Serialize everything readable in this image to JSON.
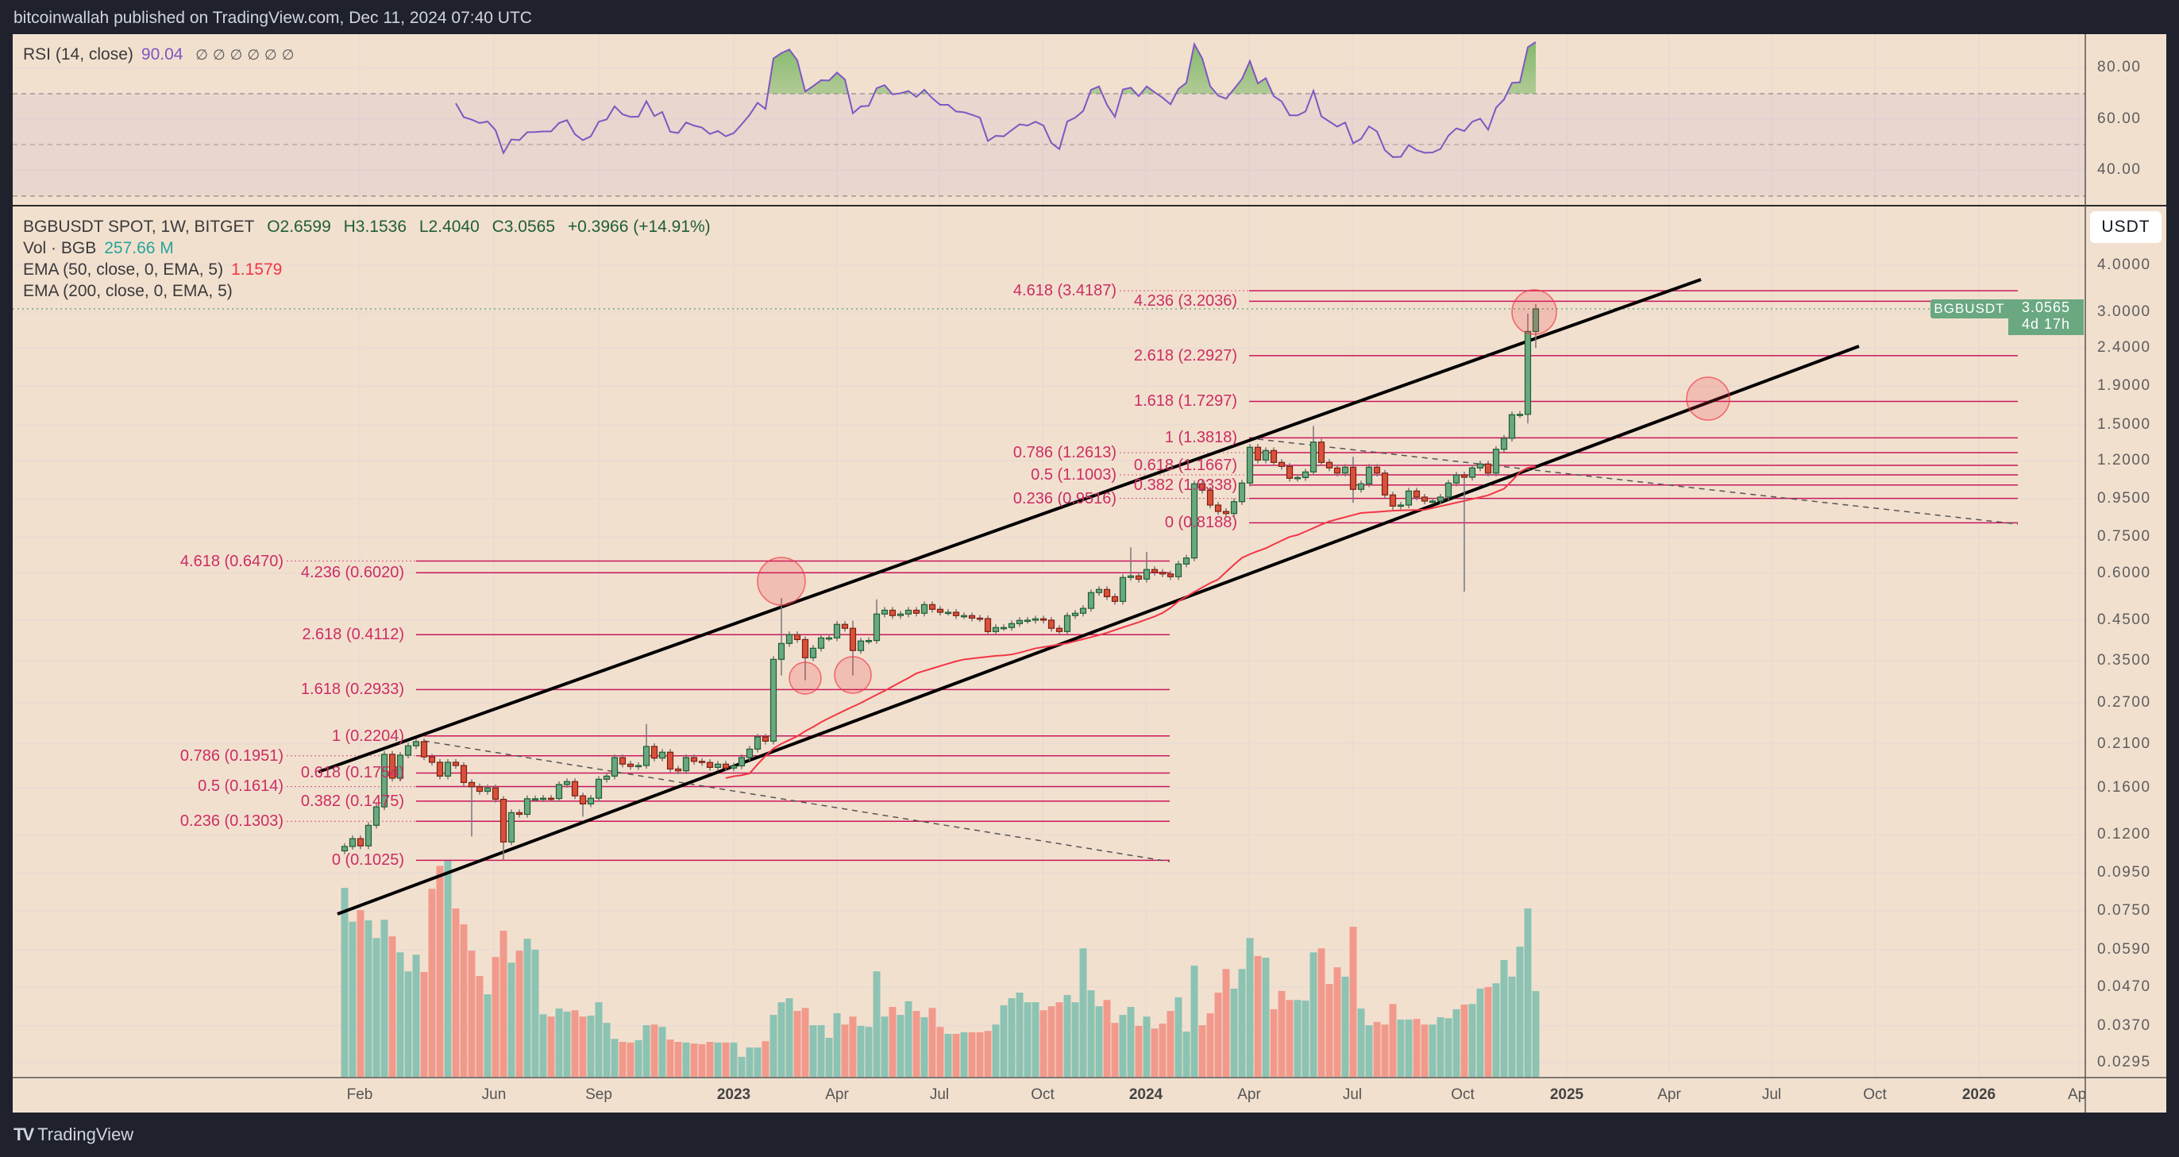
{
  "header": {
    "title": "bitcoinwallah published on TradingView.com, Dec 11, 2024 07:40 UTC"
  },
  "rsi_legend": {
    "label": "RSI (14, close)",
    "value": "90.04",
    "hidden_values": [
      "∅",
      "∅",
      "∅",
      "∅",
      "∅",
      "∅"
    ]
  },
  "legend": {
    "symbol": "BGBUSDT SPOT, 1W, BITGET",
    "open": "O2.6599",
    "high": "H3.1536",
    "low": "L2.4040",
    "close": "C3.0565",
    "change": "+0.3966 (+14.91%)",
    "vol_label": "Vol · BGB",
    "vol_value": "257.66 M",
    "ema50_label": "EMA (50, close, 0, EMA, 5)",
    "ema50_value": "1.1579",
    "ema200_label": "EMA (200, close, 0, EMA, 5)"
  },
  "price_axis": {
    "currency_button": "USDT",
    "ticks": [
      "4.0000",
      "3.0000",
      "2.4000",
      "1.9000",
      "1.5000",
      "1.2000",
      "0.9500",
      "0.7500",
      "0.6000",
      "0.4500",
      "0.3500",
      "0.2700",
      "0.2100",
      "0.1600",
      "0.1200",
      "0.0950",
      "0.0750",
      "0.0590",
      "0.0470",
      "0.0370",
      "0.0295"
    ],
    "last_price_tag": {
      "symbol": "BGBUSDT",
      "price": "3.0565",
      "countdown": "4d 17h"
    }
  },
  "rsi_axis": {
    "ticks": [
      "80.00",
      "60.00",
      "40.00"
    ],
    "upper_band": 70,
    "middle_band": 50,
    "lower_band": 30
  },
  "time_axis": {
    "labels": [
      {
        "text": "Feb",
        "bold": false
      },
      {
        "text": "Jun",
        "bold": false
      },
      {
        "text": "Sep",
        "bold": false
      },
      {
        "text": "2023",
        "bold": true
      },
      {
        "text": "Apr",
        "bold": false
      },
      {
        "text": "Jul",
        "bold": false
      },
      {
        "text": "Oct",
        "bold": false
      },
      {
        "text": "2024",
        "bold": true
      },
      {
        "text": "Apr",
        "bold": false
      },
      {
        "text": "Jul",
        "bold": false
      },
      {
        "text": "Oct",
        "bold": false
      },
      {
        "text": "2025",
        "bold": true
      },
      {
        "text": "Apr",
        "bold": false
      },
      {
        "text": "Jul",
        "bold": false
      },
      {
        "text": "Oct",
        "bold": false
      },
      {
        "text": "2026",
        "bold": true
      },
      {
        "text": "Ap",
        "bold": false
      }
    ]
  },
  "footer": {
    "brand": "TradingView",
    "logo_text": "TV"
  },
  "colors": {
    "background": "#f2e0cf",
    "frame": "#1f222c",
    "up": "#6aa881",
    "down": "#d9513b",
    "volume_up": "#8cc3b3",
    "volume_down": "#f19a8c",
    "rsi_line": "#7e57c2",
    "ema50": "#f23645",
    "fib": "#cc2d63",
    "trendline": "#000000",
    "highlight_circle": "#f23645"
  },
  "chart_data": {
    "type": "candlestick",
    "symbol": "BGBUSDT",
    "timeframe": "1W",
    "price_scale": "log",
    "first_open": 0.1086,
    "close": [
      0.1116,
      0.1171,
      0.112,
      0.1271,
      0.1424,
      0.1968,
      0.1699,
      0.1958,
      0.2074,
      0.2128,
      0.1937,
      0.1874,
      0.1721,
      0.1874,
      0.1837,
      0.1655,
      0.1612,
      0.1567,
      0.1601,
      0.1492,
      0.1147,
      0.1374,
      0.136,
      0.1497,
      0.1497,
      0.1502,
      0.1499,
      0.1634,
      0.1664,
      0.1524,
      0.145,
      0.1502,
      0.1688,
      0.1721,
      0.1929,
      0.1853,
      0.1826,
      0.1837,
      0.2066,
      0.1923,
      0.1994,
      0.1798,
      0.1778,
      0.1929,
      0.1885,
      0.1872,
      0.1816,
      0.1853,
      0.1808,
      0.1833,
      0.1929,
      0.2032,
      0.219,
      0.2134,
      0.3532,
      0.3895,
      0.4113,
      0.399,
      0.3568,
      0.3782,
      0.4031,
      0.4031,
      0.4381,
      0.4276,
      0.3729,
      0.3955,
      0.3966,
      0.4669,
      0.478,
      0.4624,
      0.4669,
      0.478,
      0.4692,
      0.4948,
      0.4807,
      0.472,
      0.472,
      0.4624,
      0.4624,
      0.4553,
      0.4539,
      0.4191,
      0.4297,
      0.4297,
      0.4401,
      0.4489,
      0.4496,
      0.4533,
      0.4496,
      0.4276,
      0.4191,
      0.4624,
      0.4692,
      0.4834,
      0.5329,
      0.5432,
      0.5196,
      0.5047,
      0.5848,
      0.5905,
      0.5788,
      0.6141,
      0.6038,
      0.5977,
      0.5876,
      0.6353,
      0.6594,
      1.041,
      1.001,
      0.9134,
      0.8783,
      0.867,
      0.9328,
      1.046,
      1.304,
      1.205,
      1.278,
      1.188,
      1.159,
      1.077,
      1.082,
      1.12,
      1.346,
      1.188,
      1.148,
      1.112,
      1.153,
      1.006,
      1.041,
      1.153,
      1.112,
      0.972,
      0.9075,
      0.9134,
      0.996,
      0.9593,
      0.9361,
      0.9361,
      0.9593,
      1.046,
      1.099,
      1.084,
      1.148,
      1.176,
      1.112,
      1.288,
      1.378,
      1.593,
      1.597,
      2.6599,
      3.0565
    ],
    "highs": {
      "38": 0.2373,
      "55": 0.515,
      "64": 0.448,
      "67": 0.511,
      "99": 0.704,
      "101": 0.684,
      "122": 1.487,
      "127": 1.23,
      "149": 2.97,
      "150": 3.1536
    },
    "lows": {
      "16": 0.1186,
      "20": 0.1025,
      "30": 0.134,
      "55": 0.3197,
      "58": 0.3104,
      "64": 0.3197,
      "127": 0.926,
      "132": 0.8855,
      "141": 0.536,
      "149": 1.51,
      "150": 2.404
    },
    "volume_unit": "M",
    "volume": [
      568,
      466,
      501,
      470,
      417,
      472,
      422,
      374,
      317,
      367,
      315,
      565,
      634,
      650,
      506,
      458,
      379,
      303,
      248,
      360,
      439,
      343,
      379,
      415,
      382,
      188,
      181,
      205,
      196,
      200,
      181,
      184,
      224,
      162,
      114,
      105,
      103,
      110,
      155,
      157,
      150,
      112,
      105,
      103,
      100,
      98,
      105,
      103,
      103,
      103,
      60,
      88,
      88,
      107,
      186,
      224,
      236,
      198,
      207,
      155,
      155,
      117,
      191,
      157,
      181,
      153,
      150,
      317,
      181,
      210,
      186,
      227,
      198,
      179,
      207,
      150,
      129,
      129,
      134,
      134,
      134,
      138,
      157,
      215,
      236,
      253,
      224,
      224,
      200,
      212,
      224,
      246,
      224,
      386,
      260,
      212,
      231,
      162,
      186,
      210,
      153,
      181,
      145,
      160,
      198,
      239,
      136,
      334,
      155,
      191,
      253,
      324,
      265,
      324,
      417,
      363,
      358,
      203,
      258,
      231,
      231,
      229,
      374,
      386,
      279,
      329,
      301,
      451,
      205,
      155,
      165,
      157,
      219,
      172,
      172,
      174,
      157,
      157,
      179,
      176,
      203,
      217,
      219,
      265,
      270,
      281,
      351,
      301,
      391,
      506,
      257.66
    ],
    "rsi": [
      null,
      null,
      null,
      null,
      null,
      null,
      null,
      null,
      null,
      null,
      null,
      null,
      null,
      null,
      66.1,
      60.7,
      59.7,
      58.4,
      59.0,
      55.6,
      46.7,
      52.0,
      51.7,
      54.8,
      54.9,
      55.1,
      55.1,
      58.4,
      59.5,
      54.0,
      51.7,
      53.2,
      58.9,
      59.8,
      64.9,
      61.8,
      60.8,
      60.9,
      66.9,
      61.1,
      62.7,
      55.0,
      54.5,
      58.6,
      57.4,
      56.6,
      54.1,
      55.3,
      53.2,
      54.5,
      57.9,
      61.6,
      66.3,
      63.9,
      83.6,
      85.7,
      87.1,
      82.9,
      70.7,
      72.8,
      75.1,
      75.0,
      78.1,
      75.4,
      62.2,
      64.9,
      65.1,
      72.0,
      73.2,
      69.6,
      70.0,
      70.9,
      68.6,
      71.4,
      68.1,
      65.5,
      65.5,
      62.9,
      62.6,
      61.6,
      60.5,
      51.4,
      53.4,
      53.2,
      55.6,
      57.9,
      57.4,
      58.9,
      57.4,
      50.6,
      48.2,
      59.0,
      60.5,
      63.1,
      71.4,
      72.7,
      65.5,
      60.8,
      71.5,
      72.2,
      68.9,
      72.7,
      70.4,
      68.3,
      65.7,
      71.7,
      74.1,
      89.2,
      83.6,
      72.8,
      69.1,
      67.9,
      71.7,
      75.6,
      82.6,
      73.9,
      75.9,
      68.9,
      66.8,
      61.4,
      61.4,
      62.9,
      71.0,
      61.0,
      59.0,
      57.0,
      58.6,
      50.5,
      52.2,
      57.1,
      55.1,
      47.8,
      45.1,
      45.2,
      49.8,
      47.8,
      46.8,
      46.9,
      48.3,
      53.5,
      56.3,
      55.3,
      58.9,
      60.1,
      55.8,
      64.4,
      67.6,
      74.1,
      74.3,
      88.0,
      90.04
    ],
    "ema50_start_index": 48,
    "ema50": [
      0.17,
      0.172,
      0.173,
      0.175,
      0.185,
      0.195,
      0.204,
      0.21,
      0.215,
      0.22,
      0.227,
      0.233,
      0.24,
      0.246,
      0.252,
      0.258,
      0.264,
      0.27,
      0.277,
      0.284,
      0.291,
      0.299,
      0.307,
      0.315,
      0.324,
      0.329,
      0.334,
      0.339,
      0.344,
      0.349,
      0.353,
      0.355,
      0.357,
      0.359,
      0.361,
      0.362,
      0.364,
      0.368,
      0.373,
      0.378,
      0.381,
      0.384,
      0.387,
      0.39,
      0.395,
      0.4,
      0.405,
      0.41,
      0.416,
      0.423,
      0.43,
      0.437,
      0.444,
      0.452,
      0.46,
      0.47,
      0.485,
      0.505,
      0.52,
      0.535,
      0.55,
      0.565,
      0.578,
      0.605,
      0.633,
      0.66,
      0.675,
      0.688,
      0.7,
      0.717,
      0.734,
      0.751,
      0.76,
      0.776,
      0.793,
      0.81,
      0.826,
      0.837,
      0.848,
      0.859,
      0.87,
      0.873,
      0.876,
      0.879,
      0.882,
      0.884,
      0.885,
      0.886,
      0.887,
      0.897,
      0.907,
      0.917,
      0.927,
      0.937,
      0.948,
      0.959,
      0.97,
      0.99,
      1.01,
      1.06,
      1.12,
      1.15,
      1.1579
    ],
    "fib_extensions": [
      {
        "levels": [
          {
            "label": "4.618 (0.6470)",
            "price": 0.647
          },
          {
            "label": "4.236 (0.6020)",
            "price": 0.602
          },
          {
            "label": "2.618 (0.4112)",
            "price": 0.4112
          },
          {
            "label": "1.618 (0.2933)",
            "price": 0.2933
          },
          {
            "label": "1 (0.2204)",
            "price": 0.2204
          },
          {
            "label": "0.786 (0.1951)",
            "price": 0.1951
          },
          {
            "label": "0.618 (0.1754)",
            "price": 0.1754
          },
          {
            "label": "0.5 (0.1614)",
            "price": 0.1614
          },
          {
            "label": "0.382 (0.1475)",
            "price": 0.1475
          },
          {
            "label": "0.236 (0.1303)",
            "price": 0.1303
          },
          {
            "label": "0 (0.1025)",
            "price": 0.1025
          }
        ]
      },
      {
        "levels": [
          {
            "label": "4.618 (3.4187)",
            "price": 3.4187
          },
          {
            "label": "4.236 (3.2036)",
            "price": 3.2036
          },
          {
            "label": "2.618 (2.2927)",
            "price": 2.2927
          },
          {
            "label": "1.618 (1.7297)",
            "price": 1.7297
          },
          {
            "label": "1 (1.3818)",
            "price": 1.3818
          },
          {
            "label": "0.786 (1.2613)",
            "price": 1.2613
          },
          {
            "label": "0.618 (1.1667)",
            "price": 1.1667
          },
          {
            "label": "0.5 (1.1003)",
            "price": 1.1003
          },
          {
            "label": "0.382 (1.0338)",
            "price": 1.0338
          },
          {
            "label": "0.236 (0.9516)",
            "price": 0.9516
          },
          {
            "label": "0 (0.8188)",
            "price": 0.8188
          }
        ]
      }
    ]
  }
}
